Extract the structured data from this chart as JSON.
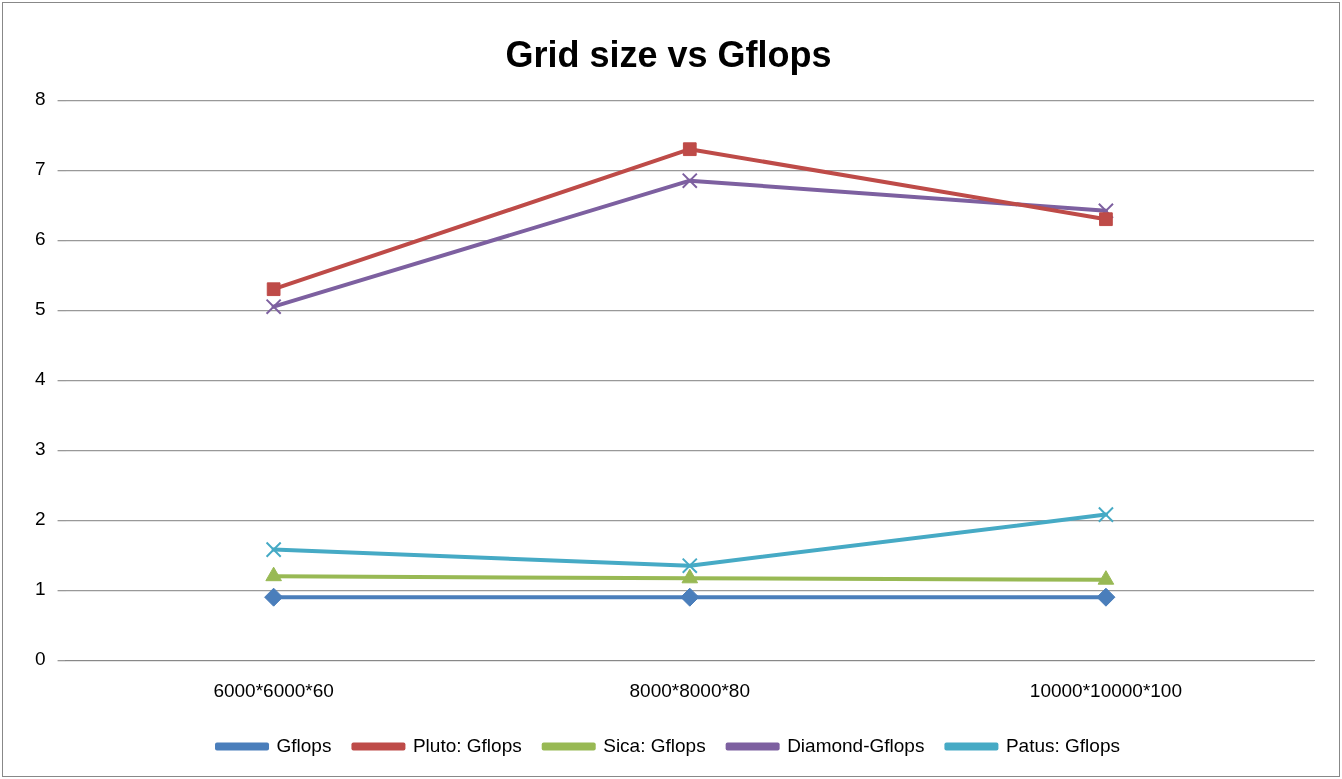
{
  "chart_data": {
    "type": "line",
    "title": "Grid size vs Gflops",
    "categories": [
      "6000*6000*60",
      "8000*8000*80",
      "10000*10000*100"
    ],
    "series": [
      {
        "name": "Gflops",
        "color": "#4a7ebb",
        "marker": "diamond",
        "values": [
          0.9,
          0.9,
          0.9
        ]
      },
      {
        "name": "Pluto: Gflops",
        "color": "#be4b48",
        "marker": "square",
        "values": [
          5.3,
          7.3,
          6.3
        ]
      },
      {
        "name": "Sica: Gflops",
        "color": "#98b954",
        "marker": "triangle",
        "values": [
          1.2,
          1.17,
          1.15
        ]
      },
      {
        "name": "Diamond-Gflops",
        "color": "#7d60a0",
        "marker": "cross",
        "values": [
          5.05,
          6.85,
          6.42
        ]
      },
      {
        "name": "Patus: Gflops",
        "color": "#46aac5",
        "marker": "cross",
        "values": [
          1.58,
          1.35,
          2.08
        ]
      }
    ],
    "ylim": [
      0,
      8
    ],
    "yticks": [
      0,
      1,
      2,
      3,
      4,
      5,
      6,
      7,
      8
    ],
    "grid": "y",
    "legend": "bottom"
  }
}
